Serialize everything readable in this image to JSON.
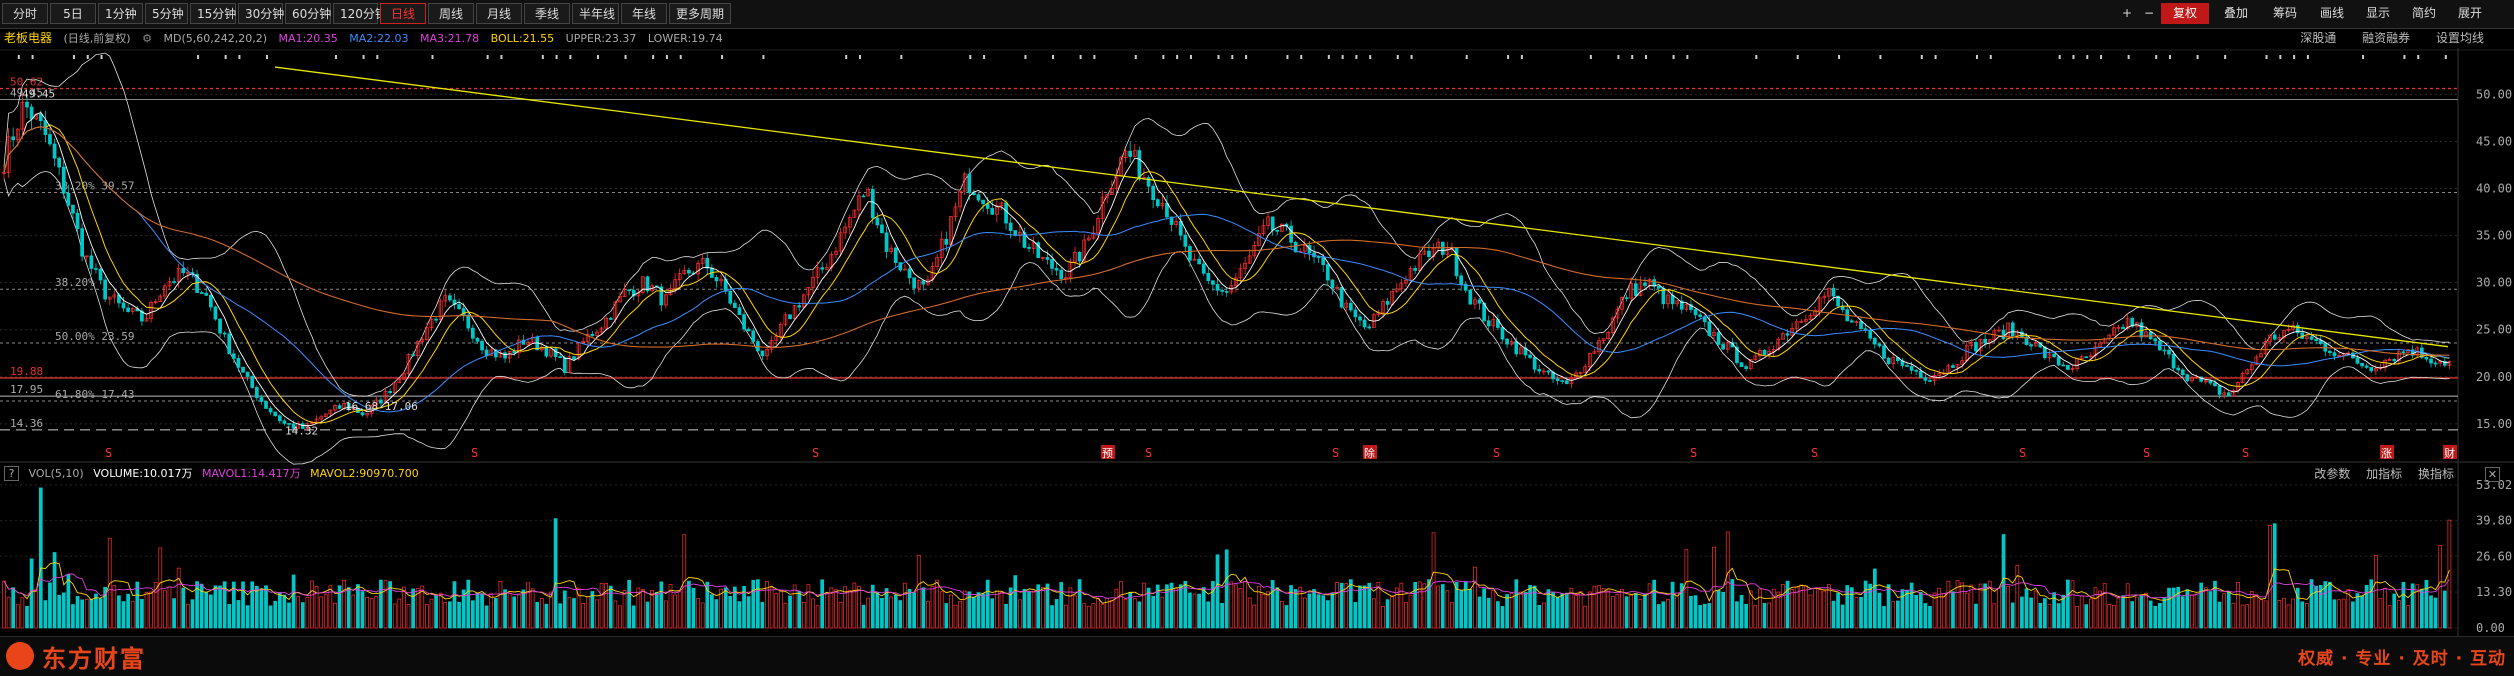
{
  "toolbar": {
    "tabs": [
      "分时",
      "5日",
      "1分钟",
      "5分钟",
      "15分钟",
      "30分钟",
      "60分钟",
      "120分钟",
      "日线",
      "周线",
      "月线",
      "季线",
      "半年线",
      "年线",
      "更多周期"
    ],
    "active_index": 8,
    "right_tools": [
      "+",
      "−",
      "复权",
      "叠加",
      "筹码",
      "画线",
      "显示",
      "简约",
      "展开"
    ]
  },
  "info": {
    "stock_name": "老板电器",
    "period_note": "(日线,前复权)",
    "ma_label": "MD(5,60,242,20,2)",
    "ma1": "MA1:20.35",
    "ma2": "MA2:22.03",
    "ma3": "MA3:21.78",
    "boll": "BOLL:21.55",
    "upper": "UPPER:23.37",
    "lower": "LOWER:19.74",
    "right_links": [
      "深股通",
      "融资融券",
      "设置均线"
    ]
  },
  "volume": {
    "label": "VOL(5,10)",
    "volume": "VOLUME:10.017万",
    "mavol1": "MAVOL1:14.417万",
    "mavol2": "MAVOL2:90970.700",
    "right_links": [
      "改参数",
      "加指标",
      "换指标"
    ]
  },
  "chart_data": {
    "type": "candlestick",
    "price_axis": {
      "ticks": [
        "50.00",
        "45.00",
        "40.00",
        "35.00",
        "30.00",
        "25.00",
        "20.00",
        "15.00"
      ],
      "values": [
        50,
        45,
        40,
        35,
        30,
        25,
        20,
        15
      ],
      "min": 13.5,
      "max": 54.5
    },
    "volume_axis": {
      "ticks": [
        "53.02",
        "39.80",
        "26.60",
        "13.30",
        "0.00"
      ],
      "values": [
        53.02,
        39.8,
        26.6,
        13.3,
        0
      ]
    },
    "levels": [
      {
        "price": 50.62,
        "label": "50.62",
        "color": "#e03030",
        "style": "dashed"
      },
      {
        "price": 49.45,
        "label": "49.45",
        "color": "#888888",
        "style": "solid"
      },
      {
        "price": 39.57,
        "label": "38.20%  39.57",
        "color": "#888888",
        "style": "dashed"
      },
      {
        "price": 29.3,
        "label": "38.20%",
        "color": "#888888",
        "style": "dashed"
      },
      {
        "price": 23.59,
        "label": "50.00%  23.59",
        "color": "#888888",
        "style": "dashed"
      },
      {
        "price": 19.88,
        "label": "19.88",
        "color": "#e03030",
        "style": "solid"
      },
      {
        "price": 17.95,
        "label": "17.95",
        "color": "#bbbbbb",
        "style": "solid"
      },
      {
        "price": 17.43,
        "label": "61.80%  17.43",
        "color": "#888888",
        "style": "dashed"
      },
      {
        "price": 14.36,
        "label": "14.36",
        "color": "#cccccc",
        "style": "dashed"
      }
    ],
    "annotations": [
      {
        "text": "49.45",
        "price": 49.45
      },
      {
        "text": "14.32",
        "price": 14.32
      },
      {
        "text": "16.68-17.06",
        "price": 16.9
      }
    ],
    "trendline": {
      "from_price": 52.9,
      "to_price": 23.2,
      "color": "#e6e600"
    },
    "event_markers": [
      "S",
      "S",
      "S",
      "预",
      "S",
      "S",
      "除",
      "S",
      "S",
      "S",
      "S",
      "S",
      "S",
      "S",
      "涨",
      "财"
    ],
    "series_colors": {
      "up": "#ff3030",
      "down": "#00c8c8",
      "ma1": "#ffffff",
      "ma2": "#ffd400",
      "ma3": "#3a8cff",
      "boll": "#e0e0e0",
      "long_ma": "#d06a2a",
      "mavol1": "#ffd400",
      "mavol2": "#e040e0"
    },
    "price_path": [
      43,
      49,
      46,
      40,
      33,
      29,
      27,
      26,
      30,
      31,
      29,
      24,
      20,
      17,
      15,
      14.5,
      16,
      17,
      16,
      18,
      21,
      25,
      28,
      26,
      23,
      22,
      24,
      23,
      21,
      24,
      26,
      29,
      30,
      28,
      31,
      32,
      29,
      25,
      22,
      26,
      29,
      32,
      36,
      40,
      34,
      31,
      29,
      35,
      41,
      39,
      37,
      34,
      32,
      31,
      34,
      40,
      44,
      41,
      38,
      33,
      30,
      29,
      32,
      36,
      35,
      33,
      31,
      27,
      25,
      28,
      31,
      33,
      34,
      29,
      26,
      24,
      22,
      20,
      19,
      22,
      25,
      29,
      30,
      28,
      27,
      25,
      23,
      21,
      23,
      25,
      27,
      29,
      26,
      24,
      22,
      21,
      20,
      21,
      23,
      24,
      25,
      24,
      22,
      21,
      22,
      24,
      26,
      24,
      22,
      20,
      19,
      18,
      21,
      24,
      25,
      24,
      23,
      22,
      21,
      22,
      23,
      22,
      21.5
    ]
  },
  "footer": {
    "logo": "东方财富",
    "slogan": "权威 · 专业 · 及时 · 互动"
  }
}
